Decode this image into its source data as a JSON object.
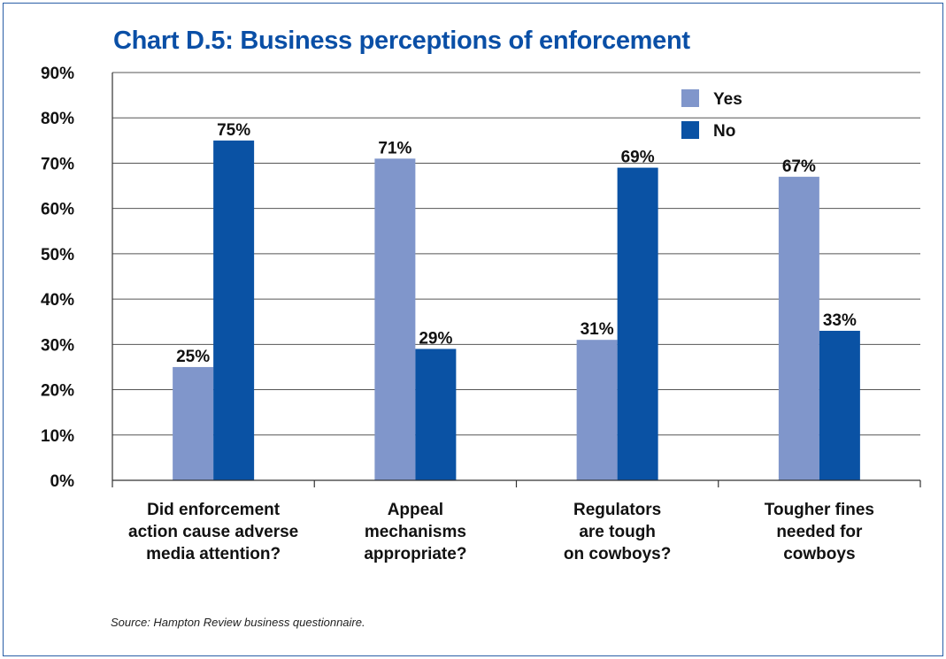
{
  "chart_data": {
    "type": "bar",
    "title": "Chart D.5: Business perceptions of enforcement",
    "categories": [
      [
        "Did enforcement",
        "action cause adverse",
        "media attention?"
      ],
      [
        "Appeal",
        "mechanisms",
        "appropriate?"
      ],
      [
        "Regulators",
        "are tough",
        "on cowboys?"
      ],
      [
        "Tougher fines",
        "needed for",
        "cowboys"
      ]
    ],
    "series": [
      {
        "name": "Yes",
        "color": "#8096cb",
        "values": [
          25,
          71,
          31,
          67
        ],
        "labels": [
          "25%",
          "71%",
          "31%",
          "67%"
        ]
      },
      {
        "name": "No",
        "color": "#0a52a4",
        "values": [
          75,
          29,
          69,
          33
        ],
        "labels": [
          "75%",
          "29%",
          "69%",
          "33%"
        ]
      }
    ],
    "ylim": [
      0,
      90
    ],
    "yticks": [
      0,
      10,
      20,
      30,
      40,
      50,
      60,
      70,
      80,
      90
    ],
    "ytick_labels": [
      "0%",
      "10%",
      "20%",
      "30%",
      "40%",
      "50%",
      "60%",
      "70%",
      "80%",
      "90%"
    ],
    "grid": true,
    "legend": "top-right",
    "source": "Source: Hampton Review business questionnaire."
  }
}
